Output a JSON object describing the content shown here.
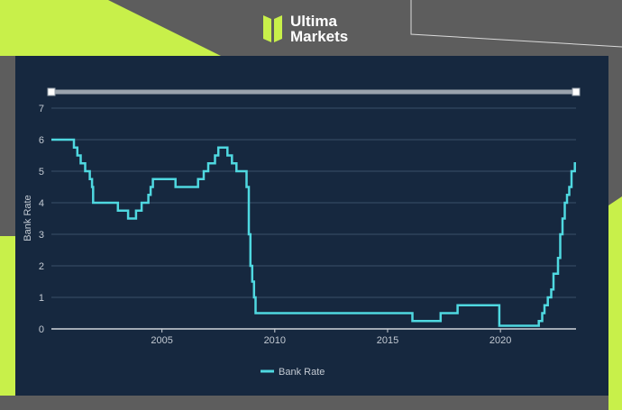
{
  "brand": {
    "line1": "Ultima",
    "line2": "Markets",
    "logo_icon": "ultima-logo-icon",
    "accent_color": "#c8f04a"
  },
  "chart_data": {
    "type": "line",
    "title": "",
    "xlabel": "",
    "ylabel": "Bank Rate",
    "xlim": [
      2000.1,
      2023.35
    ],
    "ylim": [
      0,
      7
    ],
    "y_ticks": [
      0,
      1,
      2,
      3,
      4,
      5,
      6,
      7
    ],
    "x_ticks": [
      2005,
      2010,
      2015,
      2020
    ],
    "x_tick_labels": [
      "2005",
      "2010",
      "2015",
      "2020"
    ],
    "grid": "horizontal",
    "legend_position": "bottom-center",
    "line_color": "#4fd8e0",
    "series": [
      {
        "name": "Bank Rate",
        "step": true,
        "points": [
          [
            2000.1,
            6.0
          ],
          [
            2000.45,
            6.0
          ],
          [
            2001.1,
            5.75
          ],
          [
            2001.25,
            5.5
          ],
          [
            2001.4,
            5.25
          ],
          [
            2001.6,
            5.0
          ],
          [
            2001.8,
            4.75
          ],
          [
            2001.9,
            4.5
          ],
          [
            2001.95,
            4.0
          ],
          [
            2003.05,
            3.75
          ],
          [
            2003.5,
            3.5
          ],
          [
            2003.85,
            3.75
          ],
          [
            2004.1,
            4.0
          ],
          [
            2004.4,
            4.25
          ],
          [
            2004.5,
            4.5
          ],
          [
            2004.6,
            4.75
          ],
          [
            2005.6,
            4.5
          ],
          [
            2006.6,
            4.75
          ],
          [
            2006.85,
            5.0
          ],
          [
            2007.05,
            5.25
          ],
          [
            2007.35,
            5.5
          ],
          [
            2007.5,
            5.75
          ],
          [
            2007.9,
            5.5
          ],
          [
            2008.1,
            5.25
          ],
          [
            2008.3,
            5.0
          ],
          [
            2008.75,
            4.5
          ],
          [
            2008.85,
            3.0
          ],
          [
            2008.92,
            2.0
          ],
          [
            2009.0,
            1.5
          ],
          [
            2009.08,
            1.0
          ],
          [
            2009.15,
            0.5
          ],
          [
            2016.1,
            0.25
          ],
          [
            2017.35,
            0.5
          ],
          [
            2018.1,
            0.75
          ],
          [
            2019.95,
            0.1
          ],
          [
            2021.7,
            0.25
          ],
          [
            2021.85,
            0.5
          ],
          [
            2021.95,
            0.75
          ],
          [
            2022.1,
            1.0
          ],
          [
            2022.25,
            1.25
          ],
          [
            2022.35,
            1.75
          ],
          [
            2022.55,
            2.25
          ],
          [
            2022.65,
            3.0
          ],
          [
            2022.75,
            3.5
          ],
          [
            2022.85,
            4.0
          ],
          [
            2022.95,
            4.25
          ],
          [
            2023.05,
            4.5
          ],
          [
            2023.15,
            5.0
          ],
          [
            2023.3,
            5.25
          ]
        ]
      }
    ]
  }
}
